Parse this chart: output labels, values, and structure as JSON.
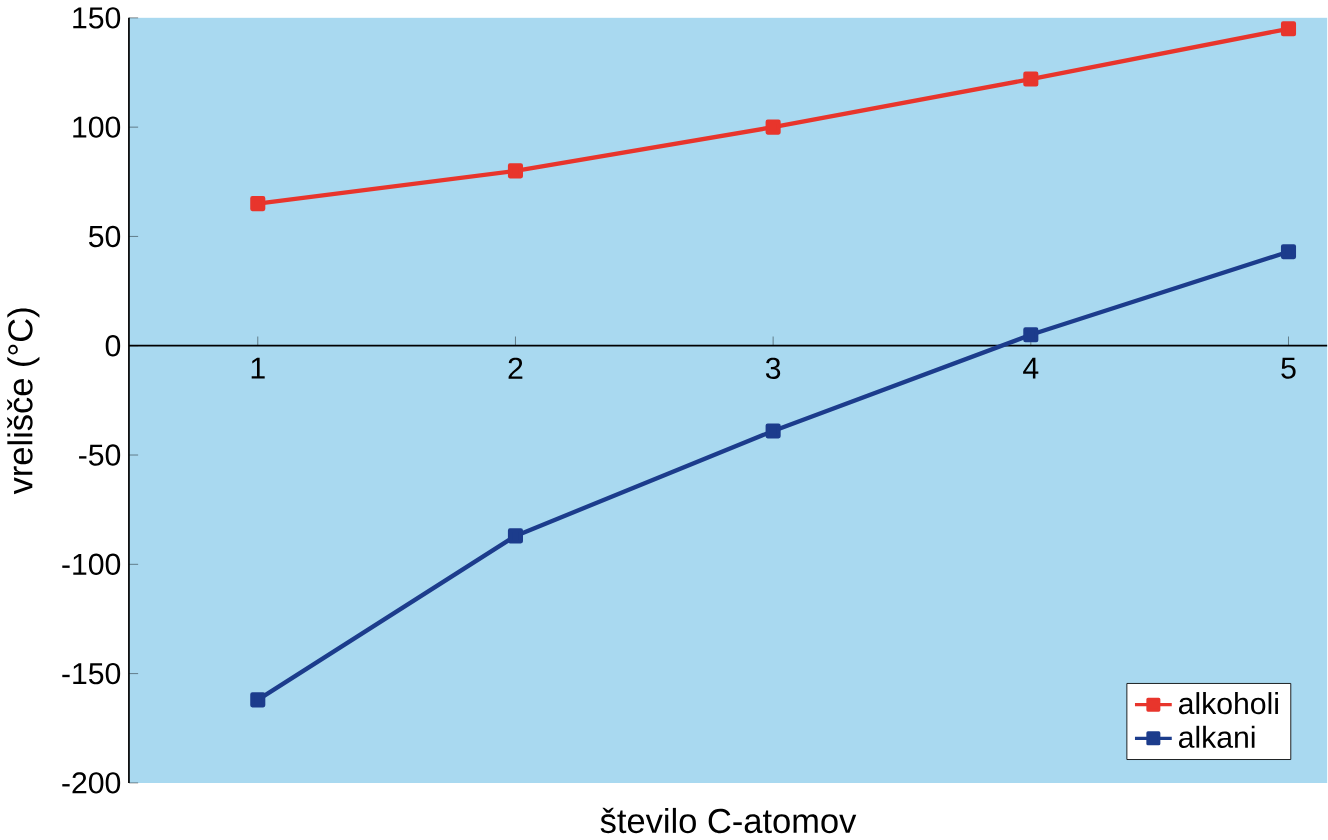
{
  "chart_data": {
    "type": "line",
    "xlabel": "število C-atomov",
    "ylabel": "vrelišče (°C)",
    "x": [
      1,
      2,
      3,
      4,
      5
    ],
    "series": [
      {
        "name": "alkoholi",
        "color": "#e8352c",
        "values": [
          65,
          80,
          100,
          122,
          145
        ]
      },
      {
        "name": "alkani",
        "color": "#1c3c8c",
        "values": [
          -162,
          -87,
          -39,
          5,
          43
        ]
      }
    ],
    "xlim": [
      0.5,
      5.15
    ],
    "ylim": [
      -200,
      150
    ],
    "xticks": [
      1,
      2,
      3,
      4,
      5
    ],
    "yticks": [
      -200,
      -150,
      -100,
      -50,
      0,
      50,
      100,
      150
    ],
    "grid": false,
    "legend": "bottom right",
    "marker": "square",
    "line_style": "solid"
  }
}
